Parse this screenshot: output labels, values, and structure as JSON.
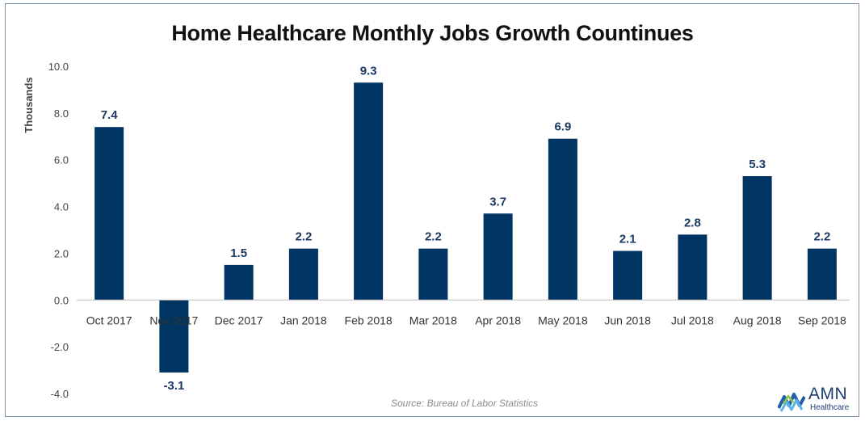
{
  "chart_data": {
    "type": "bar",
    "title": "Home Healthcare Monthly Jobs Growth Countinues",
    "ylabel": "Thousands",
    "xlabel": "",
    "ylim": [
      -4.0,
      10.0
    ],
    "yticks": [
      "10.0",
      "8.0",
      "6.0",
      "4.0",
      "2.0",
      "0.0",
      "-2.0",
      "-4.0"
    ],
    "ytick_values": [
      10,
      8,
      6,
      4,
      2,
      0,
      -2,
      -4
    ],
    "grid": false,
    "legend": "none",
    "bar_color": "#003462",
    "label_color": "#1a3a66",
    "categories": [
      "Oct 2017",
      "Nov 2017",
      "Dec 2017",
      "Jan 2018",
      "Feb 2018",
      "Mar 2018",
      "Apr 2018",
      "May 2018",
      "Jun 2018",
      "Jul 2018",
      "Aug 2018",
      "Sep 2018"
    ],
    "values": [
      7.4,
      -3.1,
      1.5,
      2.2,
      9.3,
      2.2,
      3.7,
      6.9,
      2.1,
      2.8,
      5.3,
      2.2
    ],
    "data_labels": [
      "7.4",
      "-3.1",
      "1.5",
      "2.2",
      "9.3",
      "2.2",
      "3.7",
      "6.9",
      "2.1",
      "2.8",
      "5.3",
      "2.2"
    ]
  },
  "source_text": "Source: Bureau of Labor Statistics",
  "logo": {
    "name": "AMN",
    "sub": "Healthcare",
    "icon": "amn-logo-icon"
  }
}
